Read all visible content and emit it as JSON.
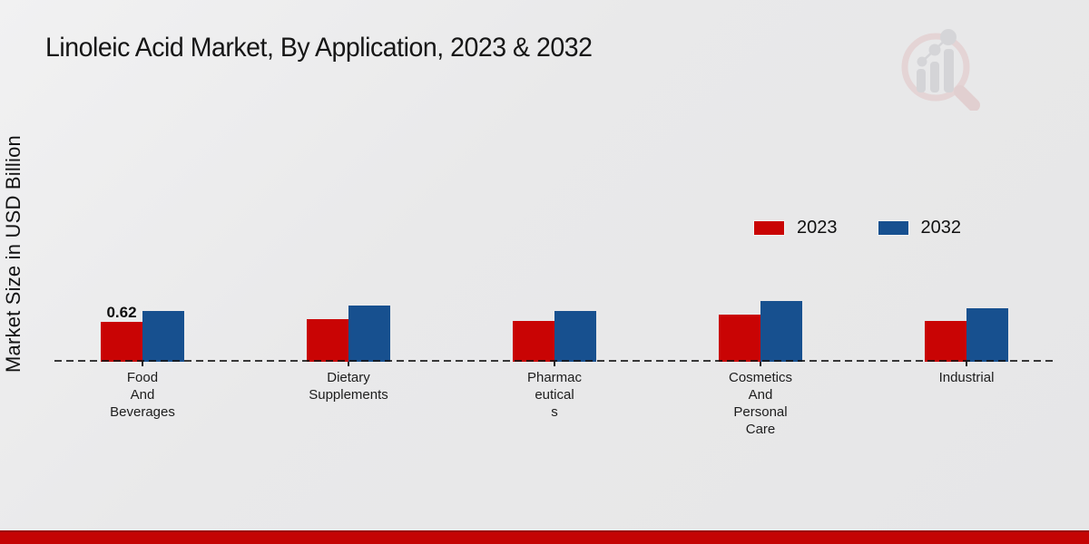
{
  "title": "Linoleic Acid Market, By Application, 2023 & 2032",
  "y_axis_label": "Market Size in USD Billion",
  "colors": {
    "series_2023": "#c90404",
    "series_2032": "#17508f",
    "footer_accent": "#c40404",
    "background": "#e9e9ea",
    "baseline": "#1a1a1a"
  },
  "icons": {
    "watermark": "magnifier-bar-chart-logo"
  },
  "legend": {
    "items": [
      {
        "label": "2023",
        "color": "#c90404"
      },
      {
        "label": "2032",
        "color": "#17508f"
      }
    ]
  },
  "chart_data": {
    "type": "bar",
    "title": "Linoleic Acid Market, By Application, 2023 & 2032",
    "xlabel": "",
    "ylabel": "Market Size in USD Billion",
    "ylim": [
      0,
      1.0
    ],
    "grid": false,
    "baseline_style": "dashed",
    "legend_position": "upper-right-inside",
    "categories": [
      "Food And Beverages",
      "Dietary Supplements",
      "Pharmaceuticals",
      "Cosmetics And Personal Care",
      "Industrial"
    ],
    "category_label_lines": [
      [
        "Food",
        "And",
        "Beverages"
      ],
      [
        "Dietary",
        "Supplements"
      ],
      [
        "Pharmac",
        "eutical",
        "s"
      ],
      [
        "Cosmetics",
        "And",
        "Personal",
        "Care"
      ],
      [
        "Industrial"
      ]
    ],
    "series": [
      {
        "name": "2023",
        "color": "#c90404",
        "values": [
          0.62,
          0.66,
          0.63,
          0.73,
          0.63
        ]
      },
      {
        "name": "2032",
        "color": "#17508f",
        "values": [
          0.79,
          0.87,
          0.79,
          0.94,
          0.83
        ]
      }
    ],
    "bar_labels": [
      {
        "series_index": 0,
        "category_index": 0,
        "text": "0.62"
      }
    ]
  }
}
